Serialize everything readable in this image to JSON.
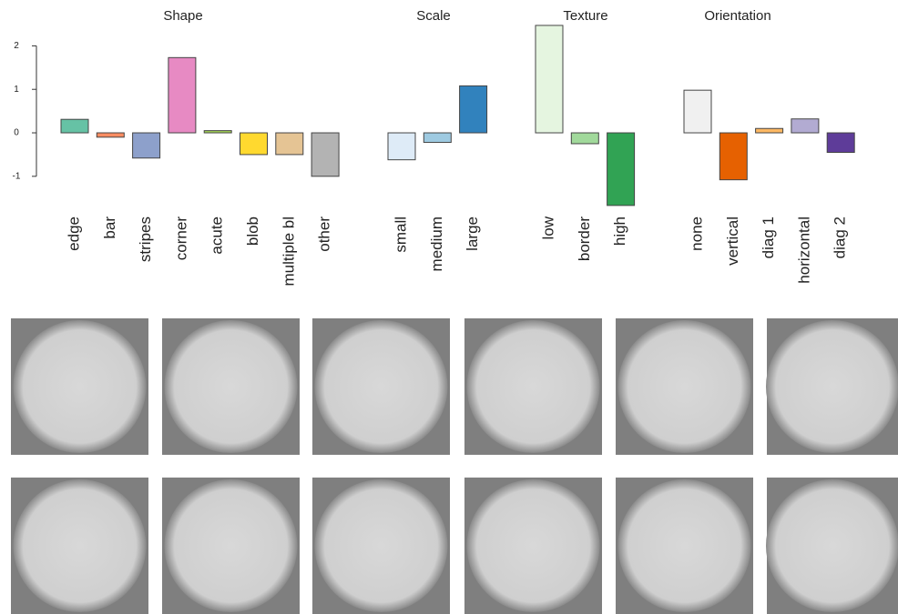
{
  "chart_data": [
    {
      "type": "bar",
      "title": "Shape",
      "categories": [
        "edge",
        "bar",
        "stripes",
        "corner",
        "acute",
        "blob",
        "multiple bl",
        "other"
      ],
      "values": [
        0.31,
        -0.1,
        -0.58,
        1.73,
        0.05,
        -0.5,
        -0.5,
        -1.0
      ],
      "colors": [
        "#66c2a5",
        "#fc8d62",
        "#8da0cb",
        "#e78ac3",
        "#a6d854",
        "#ffd92f",
        "#e5c494",
        "#b3b3b3"
      ],
      "ylim": [
        -1.7,
        2.5
      ],
      "yticks": [
        -1,
        0,
        1,
        2
      ]
    },
    {
      "type": "bar",
      "title": "Scale",
      "categories": [
        "small",
        "medium",
        "large"
      ],
      "values": [
        -0.62,
        -0.22,
        1.08
      ],
      "colors": [
        "#deebf7",
        "#9ecae1",
        "#3182bd"
      ],
      "ylim": [
        -1.7,
        2.5
      ]
    },
    {
      "type": "bar",
      "title": "Texture",
      "categories": [
        "low",
        "border",
        "high"
      ],
      "values": [
        2.47,
        -0.25,
        -1.67
      ],
      "colors": [
        "#e5f5e0",
        "#a1d99b",
        "#31a354"
      ],
      "ylim": [
        -1.7,
        2.5
      ]
    },
    {
      "type": "bar",
      "title": "Orientation",
      "categories": [
        "none",
        "vertical",
        "diag 1",
        "horizontal",
        "diag 2"
      ],
      "values": [
        0.98,
        -1.08,
        0.1,
        0.32,
        -0.45
      ],
      "colors": [
        "#f0f0f0",
        "#e66101",
        "#fdb863",
        "#b2abd2",
        "#5e3c99"
      ],
      "ylim": [
        -1.7,
        2.5
      ]
    }
  ]
}
